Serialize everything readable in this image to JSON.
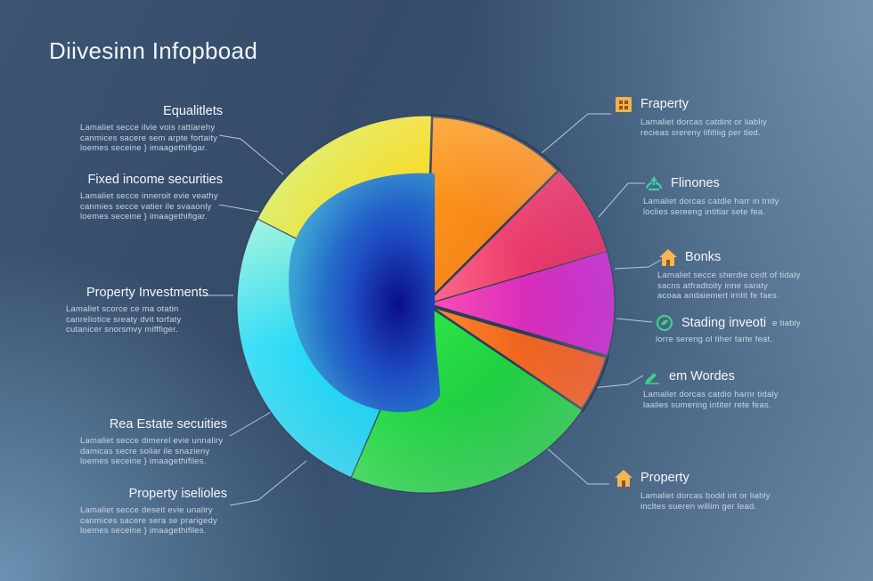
{
  "title": "Diivesinn Infopboad",
  "chart_data": {
    "type": "pie",
    "title": "Diivesinn Infopboad",
    "slices": [
      {
        "color": "#ff9a1a",
        "value": 12
      },
      {
        "color": "#e8175d",
        "value": 8
      },
      {
        "color": "#d61bd6",
        "value": 9
      },
      {
        "color": "#ff5a14",
        "value": 5
      },
      {
        "color": "#22dd2a",
        "value": 22
      },
      {
        "color": "#1ec6f2",
        "value": 26
      },
      {
        "color": "#f7e41e",
        "value": 18
      }
    ]
  },
  "labels_left": [
    {
      "title": "Equalitlets",
      "desc": "Lamaliet secce ilvie vois rattiarehy\ncanmices sacere sem arpte fortaity\nloemes seceine } imaagethifigar."
    },
    {
      "title": "Fixed income securities",
      "desc": "Lamaliet secce inneroit evie veathy\ncanmies secce vatier ile svaaonly\nloemes seceine } imaagethifigar."
    },
    {
      "title": "Property Investments",
      "desc": "Lamaliet scorce ce ma otatin\ncanreliotice sreaty dvit torfaty\ncutanicer snorsmvy mifffiger."
    },
    {
      "title": "Rea Estate secuities",
      "desc": "Lamaliet secce dimerel evie unnaliry\ndamicas secre soliar ile snazieny\nloemes seceine } imaagethifiles."
    },
    {
      "title": "Property iselioles",
      "desc": "Lamaliet secce deseit evie unaliry\ncanmices sacere sera se prarigedy\nloemes seceine } imaagethifiles."
    }
  ],
  "labels_right": [
    {
      "title": "Fraperty",
      "icon": "house-icon",
      "desc": "Lamaliet dorcas catdint or liabliy\nrecieas srereny lififiiig per tled."
    },
    {
      "title": "Flinones",
      "icon": "recycle-icon",
      "desc": "Lamaliet dorcas catdle harr in tridy\nloclies sereeng intitiar sete fea."
    },
    {
      "title": "Bonks",
      "icon": "house-icon",
      "desc": "Lamaliet secce sherdie cedt of tidaly\nsacns atfradtoity inne saraty\nacoaa andaiemert irntit fe faes."
    },
    {
      "title": "Stading inveoti",
      "suffix": "e tiably",
      "icon": "leaf-icon",
      "desc": "lorre sereng ol tiher tarte feat."
    },
    {
      "title": "em Wordes",
      "icon": "pencil-icon",
      "desc": "Lamaliet dorcas catdio harnr tidaly\nlaalies sumering intiter rete feas."
    },
    {
      "title": "Property",
      "icon": "house-icon",
      "desc": "Lamaliet dorcas bodd int or liably\nincltes sueren willim ger lead."
    }
  ]
}
